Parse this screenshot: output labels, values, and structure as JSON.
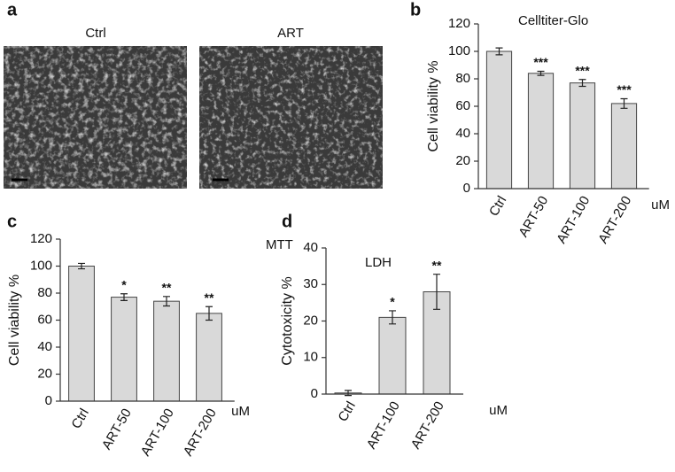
{
  "panel_a": {
    "label": "a",
    "images": [
      "Ctrl",
      "ART"
    ]
  },
  "chart_data": [
    {
      "type": "bar",
      "panel": "b",
      "title": "Celltiter-Glo",
      "ylabel": "Cell viability %",
      "x_unit": "uM",
      "categories": [
        "Ctrl",
        "ART-50",
        "ART-100",
        "ART-200"
      ],
      "values": [
        100,
        84,
        77,
        62
      ],
      "errors": [
        2.5,
        1.5,
        2.5,
        3.5
      ],
      "annotations": [
        null,
        "***",
        "***",
        "***"
      ],
      "color": "#d9d9d9",
      "ylim": [
        0,
        120
      ],
      "yticks": [
        0,
        20,
        40,
        60,
        80,
        100,
        120
      ]
    },
    {
      "type": "bar",
      "panel": "c",
      "title": "MTT",
      "ylabel": "Cell viability %",
      "x_unit": "uM",
      "categories": [
        "Ctrl",
        "ART-50",
        "ART-100",
        "ART-200"
      ],
      "values": [
        100,
        77,
        74,
        65
      ],
      "errors": [
        2,
        2.5,
        3.5,
        5
      ],
      "annotations": [
        null,
        "*",
        "**",
        "**"
      ],
      "color": "#d9d9d9",
      "ylim": [
        0,
        120
      ],
      "yticks": [
        0,
        20,
        40,
        60,
        80,
        100,
        120
      ]
    },
    {
      "type": "bar",
      "panel": "d",
      "title": "LDH",
      "ylabel": "Cytotoxicity %",
      "x_unit": "uM",
      "categories": [
        "Ctrl",
        "ART-100",
        "ART-200"
      ],
      "values": [
        0.3,
        21,
        28
      ],
      "errors": [
        0.7,
        1.8,
        4.8
      ],
      "annotations": [
        null,
        "*",
        "**"
      ],
      "color": "#d9d9d9",
      "ylim": [
        0,
        40
      ],
      "yticks": [
        0,
        10,
        20,
        30,
        40
      ]
    }
  ]
}
